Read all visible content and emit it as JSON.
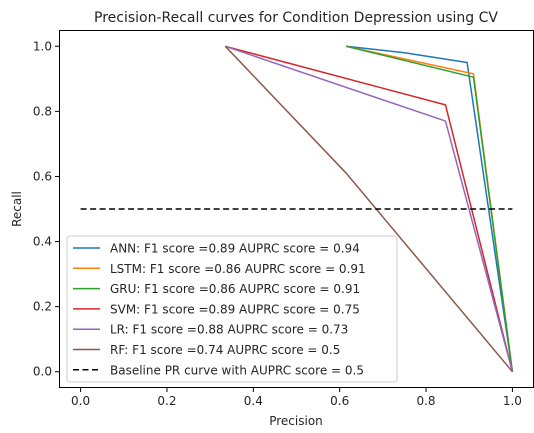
{
  "chart_data": {
    "type": "line",
    "title": "Precision-Recall curves for Condition Depression using CV",
    "xlabel": "Precision",
    "ylabel": "Recall",
    "xlim": [
      -0.05,
      1.05
    ],
    "ylim": [
      -0.05,
      1.05
    ],
    "xticks": [
      0.0,
      0.2,
      0.4,
      0.6,
      0.8,
      1.0
    ],
    "xtick_labels": [
      "0.0",
      "0.2",
      "0.4",
      "0.6",
      "0.8",
      "1.0"
    ],
    "yticks": [
      0.0,
      0.2,
      0.4,
      0.6,
      0.8,
      1.0
    ],
    "ytick_labels": [
      "0.0",
      "0.2",
      "0.4",
      "0.6",
      "0.8",
      "1.0"
    ],
    "grid": false,
    "legend_position": "lower-left",
    "series": [
      {
        "name": "ANN: F1 score =0.89 AUPRC score = 0.94",
        "color": "#1f77b4",
        "dashed": false,
        "x": [
          0.615,
          0.75,
          0.895,
          1.0
        ],
        "y": [
          1.0,
          0.98,
          0.95,
          0.0
        ]
      },
      {
        "name": "LSTM: F1 score =0.86 AUPRC score = 0.91",
        "color": "#ff7f0e",
        "dashed": false,
        "x": [
          0.615,
          0.91,
          1.0
        ],
        "y": [
          1.0,
          0.915,
          0.0
        ]
      },
      {
        "name": "GRU: F1 score =0.86 AUPRC score = 0.91",
        "color": "#2ca02c",
        "dashed": false,
        "x": [
          0.615,
          0.91,
          1.0
        ],
        "y": [
          1.0,
          0.905,
          0.0
        ]
      },
      {
        "name": "SVM: F1 score =0.89 AUPRC score = 0.75",
        "color": "#d62728",
        "dashed": false,
        "x": [
          0.335,
          0.845,
          1.0
        ],
        "y": [
          1.0,
          0.82,
          0.0
        ]
      },
      {
        "name": "LR: F1 score =0.88 AUPRC score = 0.73",
        "color": "#9467bd",
        "dashed": false,
        "x": [
          0.335,
          0.845,
          1.0
        ],
        "y": [
          1.0,
          0.77,
          0.0
        ]
      },
      {
        "name": "RF: F1 score =0.74 AUPRC score = 0.5",
        "color": "#8c564b",
        "dashed": false,
        "x": [
          0.335,
          0.615,
          1.0
        ],
        "y": [
          1.0,
          0.61,
          0.0
        ]
      },
      {
        "name": "Baseline PR curve with AUPRC score = 0.5",
        "color": "#000000",
        "dashed": true,
        "x": [
          0.0,
          1.0
        ],
        "y": [
          0.5,
          0.5
        ]
      }
    ]
  }
}
